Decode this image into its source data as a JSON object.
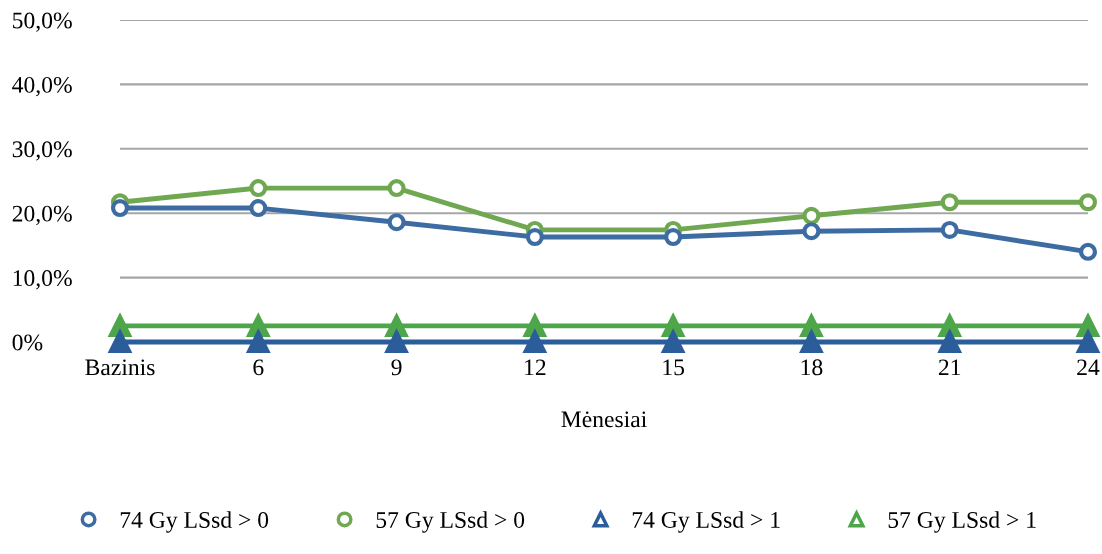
{
  "chart_data": {
    "type": "line",
    "xlabel": "Mėnesiai",
    "categories": [
      "Bazinis",
      "6",
      "9",
      "12",
      "15",
      "18",
      "21",
      "24"
    ],
    "series": [
      {
        "name": "74 Gy LSsd > 0",
        "color": "#3d6ca3",
        "marker": "circle",
        "values": [
          20.8,
          20.8,
          18.6,
          16.3,
          16.3,
          17.2,
          17.4,
          14.0
        ]
      },
      {
        "name": "57 Gy LSsd > 0",
        "color": "#70a852",
        "marker": "circle",
        "values": [
          21.7,
          23.9,
          23.9,
          17.4,
          17.4,
          19.6,
          21.7,
          21.7
        ]
      },
      {
        "name": "74 Gy LSsd > 1",
        "color": "#2b5d9a",
        "marker": "triangle",
        "values": [
          0,
          0,
          0,
          0,
          0,
          0,
          0,
          0
        ]
      },
      {
        "name": "57 Gy LSsd > 1",
        "color": "#4ea64b",
        "marker": "triangle",
        "values": [
          2.5,
          2.5,
          2.5,
          2.5,
          2.5,
          2.5,
          2.5,
          2.5
        ]
      }
    ],
    "ylim": [
      0,
      50
    ],
    "yticks": [
      {
        "value": 0,
        "label": "0%"
      },
      {
        "value": 10,
        "label": "10,0%"
      },
      {
        "value": 20,
        "label": "20,0%"
      },
      {
        "value": 30,
        "label": "30,0%"
      },
      {
        "value": 40,
        "label": "40,0%"
      },
      {
        "value": 50,
        "label": "50,0%"
      }
    ],
    "grid": "y",
    "legend": "bottom",
    "line_style": "solid"
  }
}
